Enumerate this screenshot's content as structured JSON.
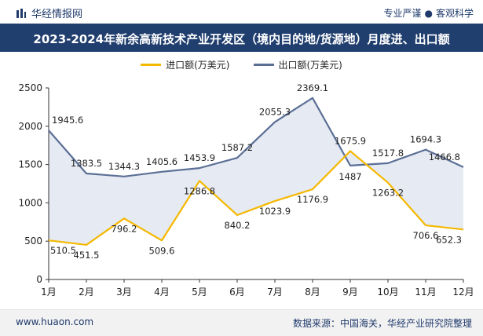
{
  "header": {
    "brand": "华经情报网",
    "tag_left": "专业严谨",
    "tag_sep": "●",
    "tag_right": "客观科学"
  },
  "footer": {
    "website": "www.huaon.com",
    "source": "数据来源：中国海关，华经产业研究院整理"
  },
  "colors": {
    "title_bg": "#203e6e",
    "import": "#f5b800",
    "export": "#5b6f96",
    "fill": "#dde3ee"
  },
  "chart_data": {
    "type": "line",
    "title": "2023-2024年新余高新技术产业开发区（境内目的地/货源地）月度进、出口额",
    "categories": [
      "1月",
      "2月",
      "3月",
      "4月",
      "5月",
      "6月",
      "7月",
      "8月",
      "9月",
      "10月",
      "11月",
      "12月"
    ],
    "series": [
      {
        "name": "进口额(万美元)",
        "values": [
          510.5,
          451.5,
          796.2,
          509.6,
          1286.8,
          840.2,
          1023.9,
          1176.9,
          1675.9,
          1263.2,
          706.6,
          652.3
        ],
        "labels": [
          "510.5",
          "451.5",
          "796.2",
          "509.6",
          "1286.8",
          "840.2",
          "1023.9",
          "1176.9",
          "1675.9",
          "1263.2",
          "706.6",
          "652.3"
        ]
      },
      {
        "name": "出口额(万美元)",
        "values": [
          1945.6,
          1383.5,
          1344.3,
          1405.6,
          1453.9,
          1587.2,
          2055.3,
          2369.1,
          1487,
          1517.8,
          1694.3,
          1466.8
        ],
        "labels": [
          "1945.6",
          "1383.5",
          "1344.3",
          "1405.6",
          "1453.9",
          "1587.2",
          "2055.3",
          "2369.1",
          "1487",
          "1517.8",
          "1694.3",
          "1466.8"
        ]
      }
    ],
    "yticks": [
      "0",
      "500",
      "1000",
      "1500",
      "2000",
      "2500"
    ],
    "ylim": [
      0,
      2500
    ],
    "grid": false,
    "legend": "top-center"
  }
}
